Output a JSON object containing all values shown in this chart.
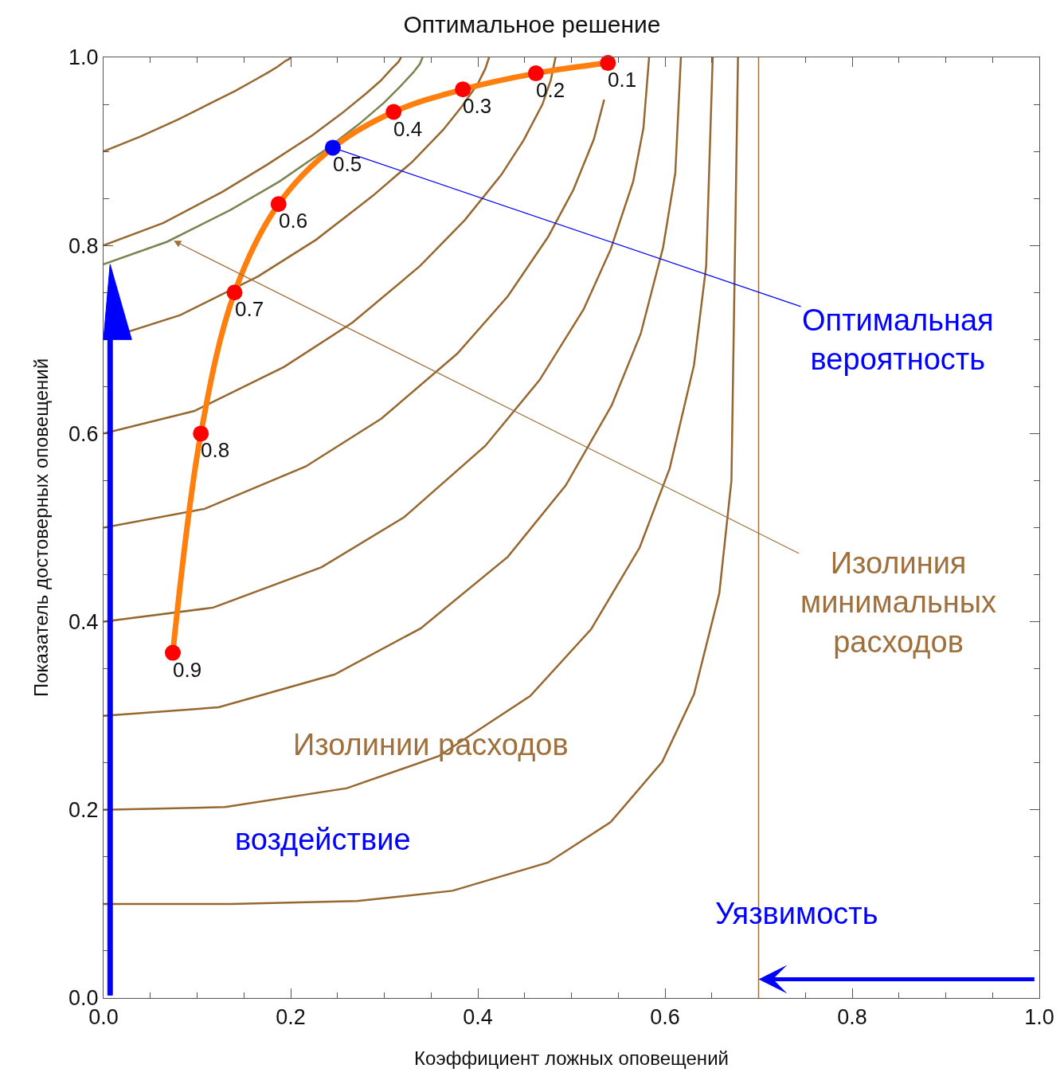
{
  "chart_data": {
    "type": "line",
    "title": "Оптимальное решение",
    "xlabel": "Коэффициент ложных оповещений",
    "ylabel": "Показатель достоверных оповещений",
    "xlim": [
      0,
      1
    ],
    "ylim": [
      0,
      1
    ],
    "xticks": [
      {
        "value": 0,
        "label": "0.0"
      },
      {
        "value": 0.05,
        "label": null
      },
      {
        "value": 0.1,
        "label": null
      },
      {
        "value": 0.15,
        "label": null
      },
      0.2,
      {
        "value": 0.25,
        "label": null
      },
      {
        "value": 0.3,
        "label": null
      },
      {
        "value": 0.35,
        "label": null
      },
      0.4,
      {
        "value": 0.45,
        "label": null
      },
      {
        "value": 0.5,
        "label": null
      },
      {
        "value": 0.55,
        "label": null
      },
      0.6,
      {
        "value": 0.65,
        "label": null
      },
      {
        "value": 0.7,
        "label": null
      },
      {
        "value": 0.75,
        "label": null
      },
      0.8,
      {
        "value": 0.85,
        "label": null
      },
      {
        "value": 0.9,
        "label": null
      },
      {
        "value": 0.95,
        "label": null
      },
      {
        "value": 1,
        "label": "1.0"
      }
    ],
    "yticks": [
      {
        "value": 0,
        "label": "0.0"
      },
      {
        "value": 0.05,
        "label": null
      },
      {
        "value": 0.1,
        "label": null
      },
      {
        "value": 0.15,
        "label": null
      },
      0.2,
      {
        "value": 0.25,
        "label": null
      },
      {
        "value": 0.3,
        "label": null
      },
      {
        "value": 0.35,
        "label": null
      },
      0.4,
      {
        "value": 0.45,
        "label": null
      },
      {
        "value": 0.5,
        "label": null
      },
      {
        "value": 0.55,
        "label": null
      },
      0.6,
      {
        "value": 0.65,
        "label": null
      },
      {
        "value": 0.7,
        "label": null
      },
      {
        "value": 0.75,
        "label": null
      },
      0.8,
      {
        "value": 0.85,
        "label": null
      },
      {
        "value": 0.9,
        "label": null
      },
      {
        "value": 0.95,
        "label": null
      },
      {
        "value": 1,
        "label": "1.0"
      }
    ],
    "series": [
      {
        "color": "#96672f",
        "marker": "none",
        "x": [
          0.0,
          0.136,
          0.271,
          0.373,
          0.475,
          0.542,
          0.597,
          0.631,
          0.658,
          0.671,
          0.678
        ],
        "values": [
          0.1,
          0.1,
          0.103,
          0.114,
          0.144,
          0.187,
          0.251,
          0.323,
          0.43,
          0.55,
          1.0
        ]
      },
      {
        "color": "#96672f",
        "marker": "none",
        "x": [
          0.0,
          0.13,
          0.26,
          0.358,
          0.456,
          0.521,
          0.573,
          0.605,
          0.631,
          0.644,
          0.651
        ],
        "values": [
          0.2,
          0.203,
          0.223,
          0.257,
          0.321,
          0.392,
          0.479,
          0.563,
          0.673,
          0.778,
          1.0
        ]
      },
      {
        "color": "#96672f",
        "marker": "none",
        "x": [
          0.0,
          0.123,
          0.247,
          0.339,
          0.432,
          0.494,
          0.543,
          0.574,
          0.598,
          0.611,
          0.617
        ],
        "values": [
          0.3,
          0.309,
          0.344,
          0.393,
          0.469,
          0.545,
          0.63,
          0.706,
          0.798,
          0.877,
          1.0
        ]
      },
      {
        "color": "#96672f",
        "marker": "none",
        "x": [
          0.0,
          0.117,
          0.233,
          0.321,
          0.408,
          0.466,
          0.513,
          0.542,
          0.566,
          0.577,
          0.583
        ],
        "values": [
          0.4,
          0.415,
          0.458,
          0.511,
          0.587,
          0.657,
          0.732,
          0.796,
          0.868,
          0.925,
          1.0
        ]
      },
      {
        "color": "#96672f",
        "marker": "none",
        "x": [
          0.0,
          0.108,
          0.216,
          0.297,
          0.378,
          0.432,
          0.475,
          0.502,
          0.524,
          0.535
        ],
        "values": [
          0.5,
          0.52,
          0.565,
          0.616,
          0.685,
          0.746,
          0.809,
          0.859,
          0.913,
          0.955
        ]
      },
      {
        "color": "#96672f",
        "marker": "none",
        "x": [
          0.0,
          0.097,
          0.193,
          0.266,
          0.338,
          0.386,
          0.425,
          0.449,
          0.469,
          0.478,
          0.483
        ],
        "values": [
          0.6,
          0.624,
          0.671,
          0.718,
          0.778,
          0.827,
          0.875,
          0.912,
          0.95,
          0.976,
          1.0
        ]
      },
      {
        "color": "#96672f",
        "marker": "none",
        "x": [
          0.0,
          0.082,
          0.165,
          0.227,
          0.288,
          0.33,
          0.363,
          0.383,
          0.4,
          0.408,
          0.412
        ],
        "values": [
          0.7,
          0.726,
          0.767,
          0.806,
          0.853,
          0.889,
          0.923,
          0.948,
          0.972,
          0.988,
          1.0
        ]
      },
      {
        "color": "#7a8450",
        "marker": "none",
        "x": [
          0.0,
          0.068,
          0.136,
          0.188,
          0.239,
          0.273,
          0.3,
          0.317,
          0.331,
          0.338,
          0.341
        ],
        "values": [
          0.78,
          0.804,
          0.838,
          0.868,
          0.903,
          0.929,
          0.952,
          0.969,
          0.984,
          0.993,
          1.0
        ]
      },
      {
        "color": "#96672f",
        "marker": "none",
        "x": [
          0.0,
          0.064,
          0.127,
          0.175,
          0.223,
          0.254,
          0.28,
          0.296,
          0.308,
          0.315,
          0.318
        ],
        "values": [
          0.8,
          0.824,
          0.857,
          0.886,
          0.917,
          0.94,
          0.961,
          0.975,
          0.988,
          0.995,
          1.0
        ]
      },
      {
        "color": "#96672f",
        "marker": "none",
        "x": [
          0.0,
          0.04,
          0.08,
          0.11,
          0.14,
          0.16,
          0.176,
          0.186,
          0.194,
          0.198,
          0.2
        ],
        "values": [
          0.9,
          0.916,
          0.934,
          0.949,
          0.964,
          0.975,
          0.984,
          0.99,
          0.996,
          0.998,
          1.0
        ]
      },
      {
        "color": "#ff7f0e",
        "marker": "circle",
        "colors": [
          "#ff0000",
          "#ff0000",
          "#ff0000",
          "#ff0000",
          "#0000ff",
          "#ff0000",
          "#ff0000",
          "#ff0000",
          "#ff0000"
        ],
        "x": [
          0.539,
          0.462,
          0.384,
          0.31,
          0.245,
          0.187,
          0.14,
          0.104,
          0.074
        ],
        "values": [
          0.994,
          0.983,
          0.966,
          0.942,
          0.904,
          0.844,
          0.75,
          0.6,
          0.367
        ]
      }
    ],
    "ref_lines": [
      {
        "axis": "x",
        "value": 0.7,
        "color": "#a0703c"
      }
    ],
    "annotations": [
      {
        "text": "Оптимальная\nвероятность",
        "x": 0.245,
        "y": 0.904
      },
      {
        "text": "Изолиния\nминимальных\nрасходов",
        "x": 0.075,
        "y": 0.805
      },
      "Изолинии расходов",
      "воздействие",
      "Уязвимость",
      {
        "text": "0.1",
        "x": 0.539,
        "y": 0.994
      },
      {
        "text": "0.2",
        "x": 0.462,
        "y": 0.983
      },
      {
        "text": "0.3",
        "x": 0.384,
        "y": 0.966
      },
      {
        "text": "0.4",
        "x": 0.31,
        "y": 0.942
      },
      {
        "text": "0.5",
        "x": 0.245,
        "y": 0.904
      },
      {
        "text": "0.6",
        "x": 0.187,
        "y": 0.844
      },
      {
        "text": "0.7",
        "x": 0.14,
        "y": 0.75
      },
      {
        "text": "0.8",
        "x": 0.104,
        "y": 0.6
      },
      {
        "text": "0.9",
        "x": 0.074,
        "y": 0.367
      }
    ]
  }
}
